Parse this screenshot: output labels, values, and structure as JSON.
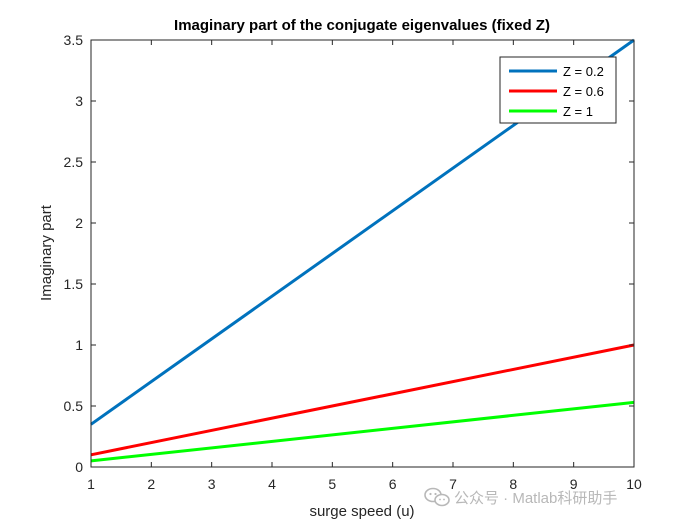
{
  "chart_data": {
    "type": "line",
    "title": "Imaginary part of the conjugate eigenvalues (fixed Z)",
    "xlabel": "surge speed (u)",
    "ylabel": "Imaginary part",
    "xlim": [
      1,
      10
    ],
    "ylim": [
      0,
      3.5
    ],
    "xticks": [
      "1",
      "2",
      "3",
      "4",
      "5",
      "6",
      "7",
      "8",
      "9",
      "10"
    ],
    "yticks": [
      "0",
      "0.5",
      "1",
      "1.5",
      "2",
      "2.5",
      "3",
      "3.5"
    ],
    "grid": false,
    "legend_position": "top-right",
    "x": [
      1,
      10
    ],
    "series": [
      {
        "name": "Z = 0.2",
        "color": "#0072BD",
        "values": [
          0.35,
          3.5
        ]
      },
      {
        "name": "Z = 0.6",
        "color": "#FF0000",
        "values": [
          0.1,
          1.0
        ]
      },
      {
        "name": "Z = 1",
        "color": "#00FF00",
        "values": [
          0.05,
          0.53
        ]
      }
    ]
  },
  "watermark": {
    "text": "公众号 · Matlab科研助手",
    "icon": "wechat-icon"
  }
}
